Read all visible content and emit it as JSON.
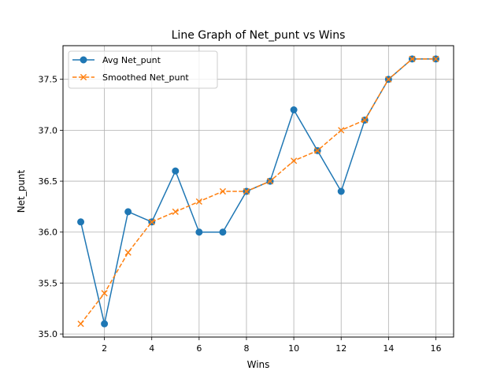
{
  "chart_data": {
    "type": "line",
    "title": "Line Graph of Net_punt vs Wins",
    "xlabel": "Wins",
    "ylabel": "Net_punt",
    "x": [
      1,
      2,
      3,
      4,
      5,
      6,
      7,
      8,
      9,
      10,
      11,
      12,
      13,
      14,
      15,
      16
    ],
    "xlim": [
      0.25,
      16.75
    ],
    "ylim": [
      34.97,
      37.83
    ],
    "xticks": [
      2,
      4,
      6,
      8,
      10,
      12,
      14,
      16
    ],
    "xtick_labels": [
      "2",
      "4",
      "6",
      "8",
      "10",
      "12",
      "14",
      "16"
    ],
    "yticks": [
      35.0,
      35.5,
      36.0,
      36.5,
      37.0,
      37.5
    ],
    "ytick_labels": [
      "35.0",
      "35.5",
      "36.0",
      "36.5",
      "37.0",
      "37.5"
    ],
    "grid": true,
    "legend_position": "upper-left",
    "series": [
      {
        "name": "Avg Net_punt",
        "color": "#1f77b4",
        "marker": "circle",
        "line_style": "solid",
        "values": [
          36.1,
          35.1,
          36.2,
          36.1,
          36.6,
          36.0,
          36.0,
          36.4,
          36.5,
          37.2,
          36.8,
          36.4,
          37.1,
          37.5,
          37.7,
          37.7
        ]
      },
      {
        "name": "Smoothed Net_punt",
        "color": "#ff7f0e",
        "marker": "x",
        "line_style": "dashed",
        "values": [
          35.1,
          35.4,
          35.8,
          36.1,
          36.2,
          36.3,
          36.4,
          36.4,
          36.5,
          36.7,
          36.8,
          37.0,
          37.1,
          37.5,
          37.7,
          37.7
        ]
      }
    ]
  }
}
